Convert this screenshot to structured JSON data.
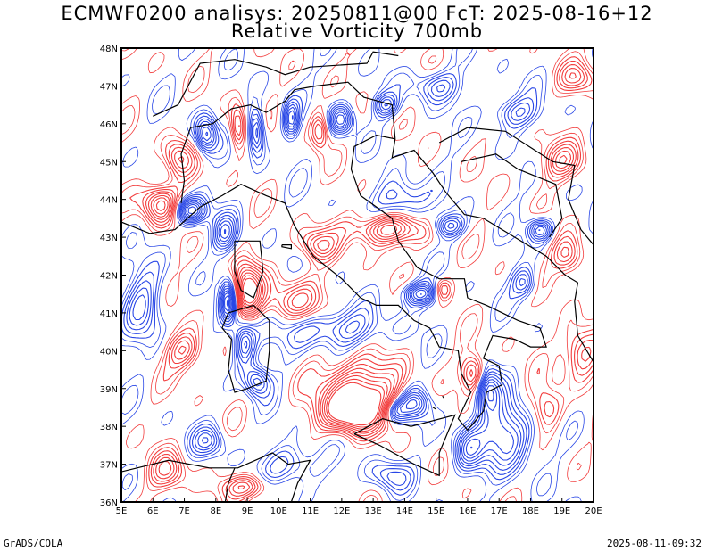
{
  "header": {
    "title_line1": "ECMWF0200 analisys: 20250811@00 FcT: 2025-08-16+12",
    "title_line2": "Relative Vorticity 700mb"
  },
  "map": {
    "lat_labels": [
      "48N",
      "47N",
      "46N",
      "45N",
      "44N",
      "43N",
      "42N",
      "41N",
      "40N",
      "39N",
      "38N",
      "37N",
      "36N"
    ],
    "lon_labels": [
      "5E",
      "6E",
      "7E",
      "8E",
      "9E",
      "10E",
      "11E",
      "12E",
      "13E",
      "14E",
      "15E",
      "16E",
      "17E",
      "18E",
      "19E",
      "20E"
    ],
    "lon_range": [
      5,
      20
    ],
    "lat_range": [
      36,
      48
    ],
    "positive_color": "#f23c3c",
    "negative_color": "#2846e6",
    "coast_color": "#000000"
  },
  "footer": {
    "left": "GrADS/COLA",
    "right": "2025-08-11-09:32"
  }
}
